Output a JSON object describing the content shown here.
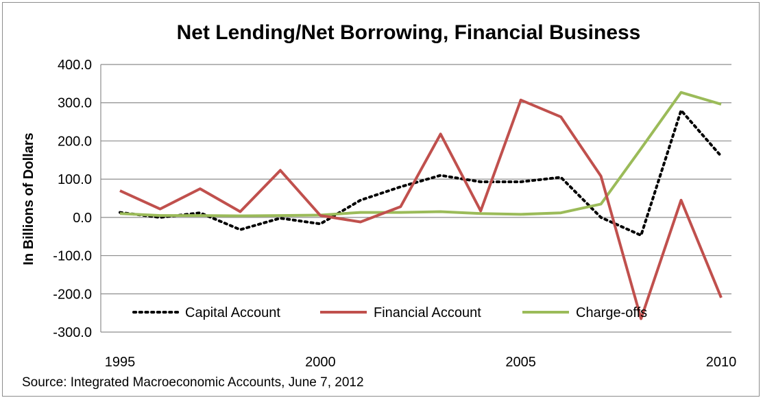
{
  "chart_data": {
    "type": "line",
    "title": "Net Lending/Net Borrowing, Financial Business",
    "ylabel": "In Billions of Dollars",
    "xlabel": "",
    "source": "Source: Integrated Macroeconomic Accounts, June 7, 2012",
    "ylim": [
      -300,
      400
    ],
    "xlim": [
      1995,
      2010
    ],
    "yticks": [
      "400.0",
      "300.0",
      "200.0",
      "100.0",
      "0.0",
      "-100.0",
      "-200.0",
      "-300.0"
    ],
    "ytick_values": [
      400,
      300,
      200,
      100,
      0,
      -100,
      -200,
      -300
    ],
    "xticks": [
      "1995",
      "2000",
      "2005",
      "2010"
    ],
    "xtick_values": [
      1995,
      2000,
      2005,
      2010
    ],
    "grid": "horizontal",
    "legend_position": "bottom-inside",
    "x": [
      1995,
      1996,
      1997,
      1998,
      1999,
      2000,
      2001,
      2002,
      2003,
      2004,
      2005,
      2006,
      2007,
      2008,
      2009,
      2010
    ],
    "series": [
      {
        "name": "Capital Account",
        "color": "#000000",
        "style": "dotted",
        "values": [
          13,
          0,
          12,
          -32,
          -2,
          -17,
          45,
          80,
          110,
          93,
          93,
          105,
          0,
          -47,
          280,
          160
        ]
      },
      {
        "name": "Financial Account",
        "color": "#c0504d",
        "style": "solid",
        "values": [
          70,
          22,
          75,
          15,
          123,
          5,
          -12,
          28,
          218,
          17,
          307,
          263,
          108,
          -265,
          45,
          -210
        ]
      },
      {
        "name": "Charge-offs",
        "color": "#9bbb59",
        "style": "solid",
        "values": [
          10,
          5,
          5,
          4,
          5,
          6,
          13,
          13,
          15,
          10,
          8,
          12,
          35,
          180,
          327,
          296
        ]
      }
    ]
  }
}
